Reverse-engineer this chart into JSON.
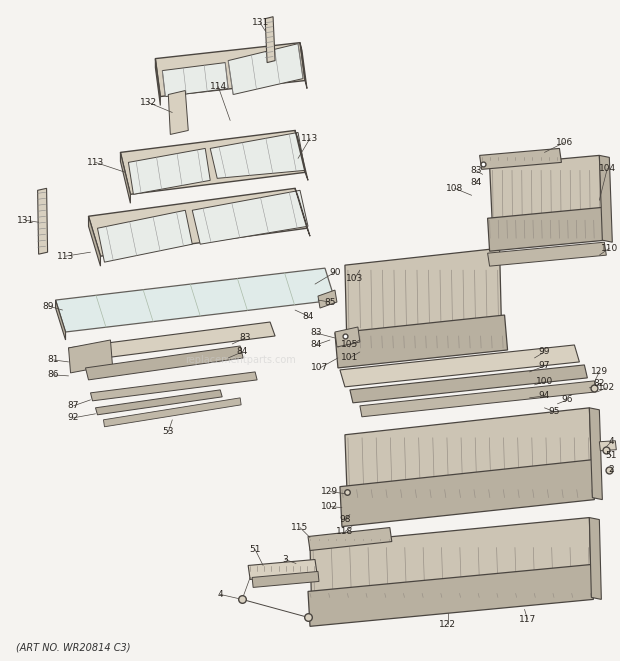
{
  "footer_text": "(ART NO. WR20814 C3)",
  "background_color": "#f5f3f0",
  "line_color": "#4a4540",
  "text_color": "#2a2520",
  "fig_width": 6.2,
  "fig_height": 6.61,
  "dpi": 100,
  "watermark": "replacementparts.com",
  "fill_shelf": "#d8d0c0",
  "fill_glass": "#e8ece8",
  "fill_dark": "#b8b0a0",
  "fill_drawer": "#ccc4b4",
  "fill_ribbed": "#c0b8a8"
}
